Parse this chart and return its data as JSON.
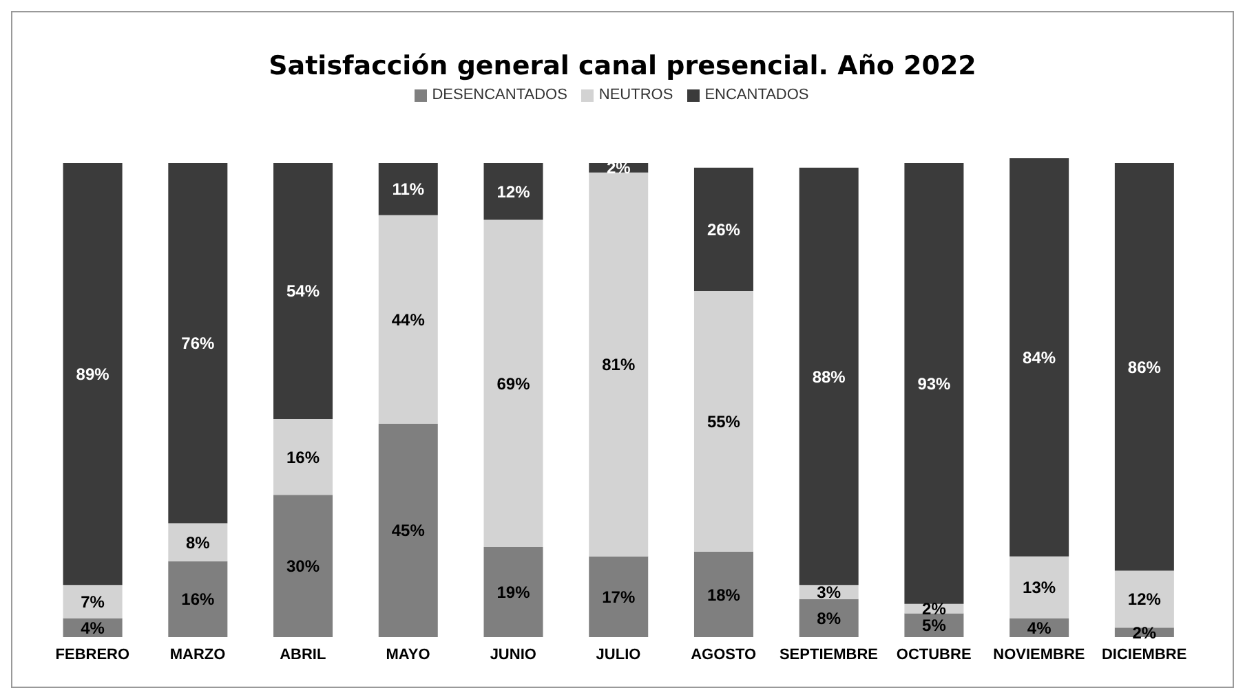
{
  "chart_data": {
    "type": "bar",
    "title": "Satisfacción general canal presencial. Año 2022",
    "stacked": true,
    "legend": "top",
    "grid": false,
    "tick_labels": "x",
    "categories": [
      "FEBRERO",
      "MARZO",
      "ABRIL",
      "MAYO",
      "JUNIO",
      "JULIO",
      "AGOSTO",
      "SEPTIEMBRE",
      "OCTUBRE",
      "NOVIEMBRE",
      "DICIEMBRE"
    ],
    "series": [
      {
        "name": "DESENCANTADOS",
        "color": "#7f7f7f",
        "values": [
          4,
          16,
          30,
          45,
          19,
          17,
          18,
          8,
          5,
          4,
          2
        ],
        "value_labels": [
          "4%",
          "16%",
          "30%",
          "45%",
          "19%",
          "17%",
          "18%",
          "8%",
          "5%",
          "4%",
          "2%"
        ]
      },
      {
        "name": "NEUTROS",
        "color": "#d3d3d3",
        "values": [
          7,
          8,
          16,
          44,
          69,
          81,
          55,
          3,
          2,
          13,
          12
        ],
        "value_labels": [
          "7%",
          "8%",
          "16%",
          "44%",
          "69%",
          "81%",
          "55%",
          "3%",
          "2%",
          "13%",
          "12%"
        ]
      },
      {
        "name": "ENCANTADOS",
        "color": "#3b3b3b",
        "values": [
          89,
          76,
          54,
          11,
          12,
          2,
          26,
          88,
          93,
          84,
          86
        ],
        "value_labels": [
          "89%",
          "76%",
          "54%",
          "11%",
          "12%",
          "2%",
          "26%",
          "88%",
          "93%",
          "84%",
          "86%"
        ]
      }
    ]
  }
}
